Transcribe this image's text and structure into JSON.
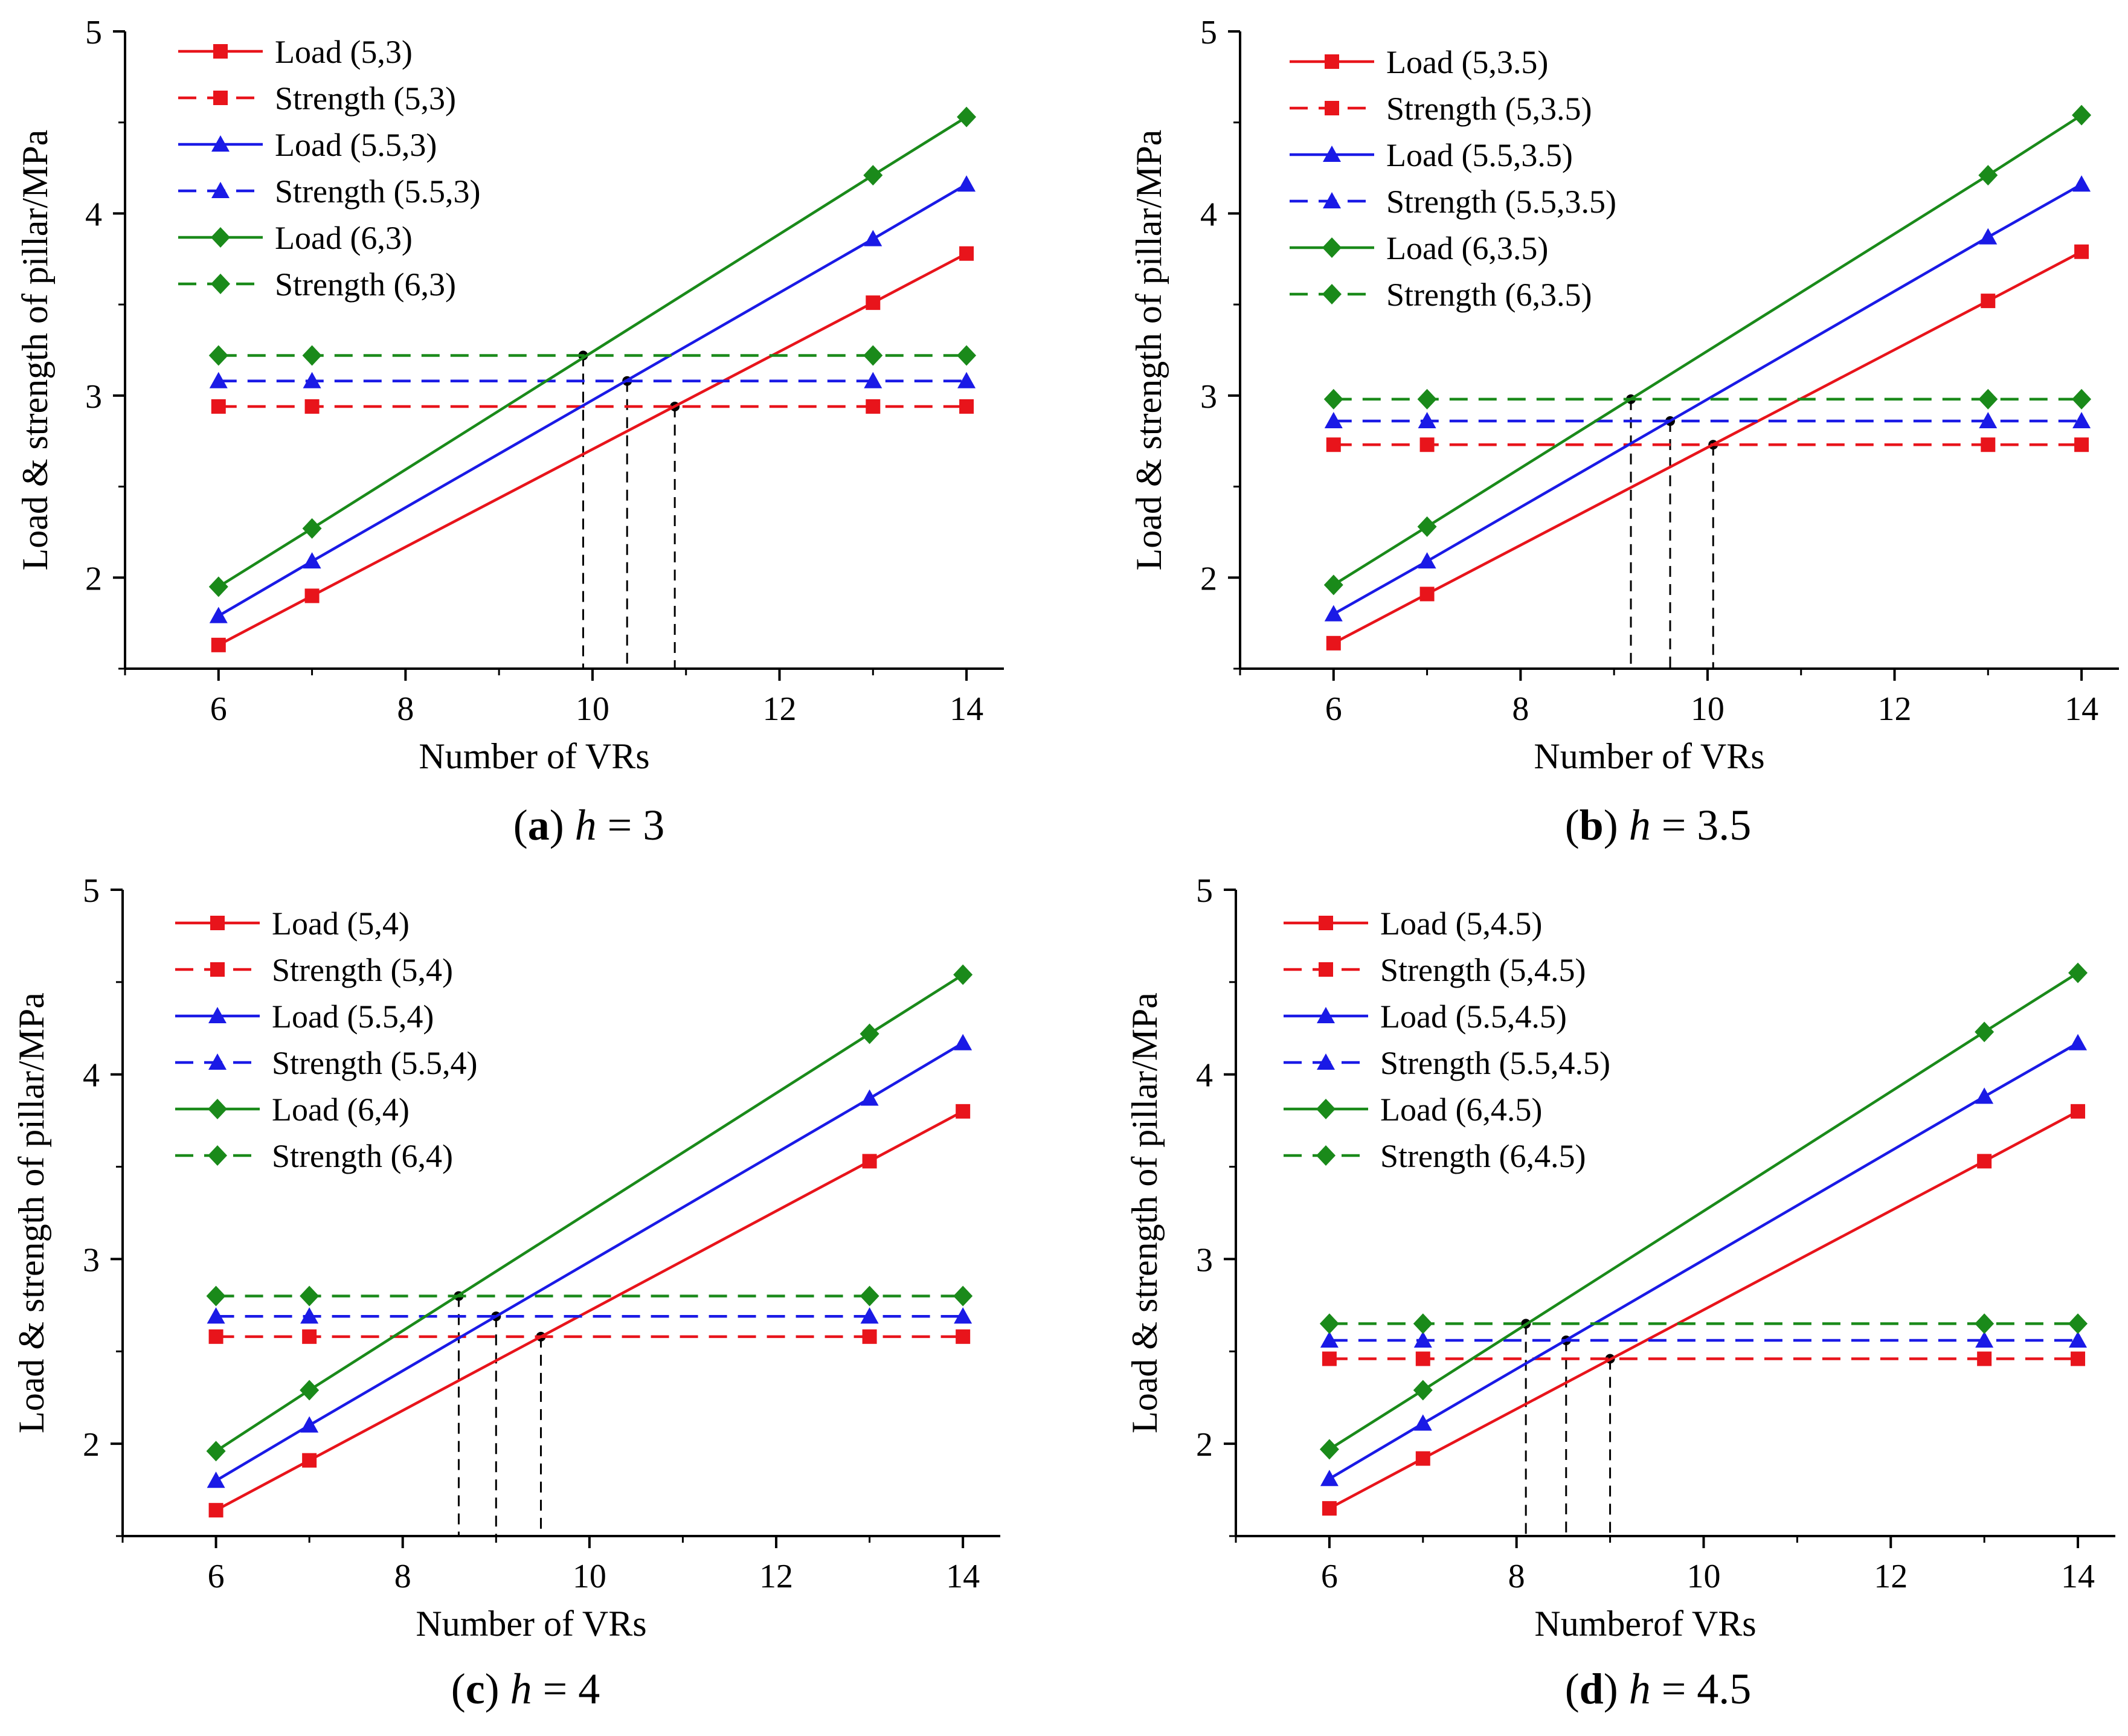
{
  "chart_data": [
    {
      "type": "line",
      "caption": {
        "letter": "a",
        "variable": "h",
        "value": "3"
      },
      "xlabel": "Number of VRs",
      "ylabel": "Load & strength of pillar/MPa",
      "xlim": [
        5,
        14.4
      ],
      "ylim": [
        1.5,
        5
      ],
      "xticks": [
        "6",
        "8",
        "10",
        "12",
        "14"
      ],
      "yticks": [
        "2",
        "3",
        "4",
        "5"
      ],
      "x": [
        6,
        7,
        13,
        14
      ],
      "series": [
        {
          "name": "Load (5,3)",
          "color": "#e8141b",
          "marker": "square",
          "dashed": false,
          "values": [
            1.63,
            1.9,
            3.51,
            3.78
          ]
        },
        {
          "name": "Strength (5,3)",
          "color": "#e8141b",
          "marker": "square",
          "dashed": true,
          "values": [
            2.94,
            2.94,
            2.94,
            2.94
          ]
        },
        {
          "name": "Load (5.5,3)",
          "color": "#1a1ae6",
          "marker": "triangle",
          "dashed": false,
          "values": [
            1.79,
            2.09,
            3.86,
            4.16
          ]
        },
        {
          "name": "Strength (5.5,3)",
          "color": "#1a1ae6",
          "marker": "triangle",
          "dashed": true,
          "values": [
            3.08,
            3.08,
            3.08,
            3.08
          ]
        },
        {
          "name": "Load (6,3)",
          "color": "#1a8a1a",
          "marker": "diamond",
          "dashed": false,
          "values": [
            1.95,
            2.27,
            4.21,
            4.53
          ]
        },
        {
          "name": "Strength (6,3)",
          "color": "#1a8a1a",
          "marker": "diamond",
          "dashed": true,
          "values": [
            3.22,
            3.22,
            3.22,
            3.22
          ]
        }
      ],
      "intersections": [
        {
          "x": 9.9,
          "y": 3.22
        },
        {
          "x": 10.37,
          "y": 3.08
        },
        {
          "x": 10.88,
          "y": 2.94
        }
      ]
    },
    {
      "type": "line",
      "caption": {
        "letter": "b",
        "variable": "h",
        "value": "3.5"
      },
      "xlabel": "Number of VRs",
      "ylabel": "Load & strength of pillar/MPa",
      "xlim": [
        5,
        14.4
      ],
      "ylim": [
        1.5,
        5
      ],
      "xticks": [
        "6",
        "8",
        "10",
        "12",
        "14"
      ],
      "yticks": [
        "2",
        "3",
        "4",
        "5"
      ],
      "x": [
        6,
        7,
        13,
        14
      ],
      "series": [
        {
          "name": "Load (5,3.5)",
          "color": "#e8141b",
          "marker": "square",
          "dashed": false,
          "values": [
            1.64,
            1.91,
            3.52,
            3.79
          ]
        },
        {
          "name": "Strength (5,3.5)",
          "color": "#e8141b",
          "marker": "square",
          "dashed": true,
          "values": [
            2.73,
            2.73,
            2.73,
            2.73
          ]
        },
        {
          "name": "Load (5.5,3.5)",
          "color": "#1a1ae6",
          "marker": "triangle",
          "dashed": false,
          "values": [
            1.8,
            2.09,
            3.87,
            4.16
          ]
        },
        {
          "name": "Strength (5.5,3.5)",
          "color": "#1a1ae6",
          "marker": "triangle",
          "dashed": true,
          "values": [
            2.86,
            2.86,
            2.86,
            2.86
          ]
        },
        {
          "name": "Load (6,3.5)",
          "color": "#1a8a1a",
          "marker": "diamond",
          "dashed": false,
          "values": [
            1.96,
            2.28,
            4.21,
            4.54
          ]
        },
        {
          "name": "Strength (6,3.5)",
          "color": "#1a8a1a",
          "marker": "diamond",
          "dashed": true,
          "values": [
            2.98,
            2.98,
            2.98,
            2.98
          ]
        }
      ],
      "intersections": [
        {
          "x": 9.18,
          "y": 2.98
        },
        {
          "x": 9.6,
          "y": 2.86
        },
        {
          "x": 10.06,
          "y": 2.73
        }
      ]
    },
    {
      "type": "line",
      "caption": {
        "letter": "c",
        "variable": "h",
        "value": "4"
      },
      "xlabel": "Number of VRs",
      "ylabel": "Load & strength of pillar/MPa",
      "xlim": [
        5,
        14.4
      ],
      "ylim": [
        1.5,
        5
      ],
      "xticks": [
        "6",
        "8",
        "10",
        "12",
        "14"
      ],
      "yticks": [
        "2",
        "3",
        "4",
        "5"
      ],
      "x": [
        6,
        7,
        13,
        14
      ],
      "series": [
        {
          "name": "Load (5,4)",
          "color": "#e8141b",
          "marker": "square",
          "dashed": false,
          "values": [
            1.64,
            1.91,
            3.53,
            3.8
          ]
        },
        {
          "name": "Strength (5,4)",
          "color": "#e8141b",
          "marker": "square",
          "dashed": true,
          "values": [
            2.58,
            2.58,
            2.58,
            2.58
          ]
        },
        {
          "name": "Load (5.5,4)",
          "color": "#1a1ae6",
          "marker": "triangle",
          "dashed": false,
          "values": [
            1.8,
            2.1,
            3.87,
            4.17
          ]
        },
        {
          "name": "Strength (5.5,4)",
          "color": "#1a1ae6",
          "marker": "triangle",
          "dashed": true,
          "values": [
            2.69,
            2.69,
            2.69,
            2.69
          ]
        },
        {
          "name": "Load (6,4)",
          "color": "#1a8a1a",
          "marker": "diamond",
          "dashed": false,
          "values": [
            1.96,
            2.29,
            4.22,
            4.54
          ]
        },
        {
          "name": "Strength (6,4)",
          "color": "#1a8a1a",
          "marker": "diamond",
          "dashed": true,
          "values": [
            2.8,
            2.8,
            2.8,
            2.8
          ]
        }
      ],
      "intersections": [
        {
          "x": 8.6,
          "y": 2.8
        },
        {
          "x": 9.0,
          "y": 2.69
        },
        {
          "x": 9.48,
          "y": 2.58
        }
      ]
    },
    {
      "type": "line",
      "caption": {
        "letter": "d",
        "variable": "h",
        "value": "4.5"
      },
      "xlabel": "Numberof VRs",
      "ylabel": "Load & strength of pillar/MPa",
      "xlim": [
        5,
        14.4
      ],
      "ylim": [
        1.5,
        5
      ],
      "xticks": [
        "6",
        "8",
        "10",
        "12",
        "14"
      ],
      "yticks": [
        "2",
        "3",
        "4",
        "5"
      ],
      "x": [
        6,
        7,
        13,
        14
      ],
      "series": [
        {
          "name": "Load (5,4.5)",
          "color": "#e8141b",
          "marker": "square",
          "dashed": false,
          "values": [
            1.65,
            1.92,
            3.53,
            3.8
          ]
        },
        {
          "name": "Strength (5,4.5)",
          "color": "#e8141b",
          "marker": "square",
          "dashed": true,
          "values": [
            2.46,
            2.46,
            2.46,
            2.46
          ]
        },
        {
          "name": "Load (5.5,4.5)",
          "color": "#1a1ae6",
          "marker": "triangle",
          "dashed": false,
          "values": [
            1.81,
            2.11,
            3.88,
            4.17
          ]
        },
        {
          "name": "Strength (5.5,4.5)",
          "color": "#1a1ae6",
          "marker": "triangle",
          "dashed": true,
          "values": [
            2.56,
            2.56,
            2.56,
            2.56
          ]
        },
        {
          "name": "Load (6,4.5)",
          "color": "#1a8a1a",
          "marker": "diamond",
          "dashed": false,
          "values": [
            1.97,
            2.29,
            4.23,
            4.55
          ]
        },
        {
          "name": "Strength (6,4.5)",
          "color": "#1a8a1a",
          "marker": "diamond",
          "dashed": true,
          "values": [
            2.65,
            2.65,
            2.65,
            2.65
          ]
        }
      ],
      "intersections": [
        {
          "x": 8.1,
          "y": 2.65
        },
        {
          "x": 8.53,
          "y": 2.56
        },
        {
          "x": 9.0,
          "y": 2.46
        }
      ]
    }
  ]
}
